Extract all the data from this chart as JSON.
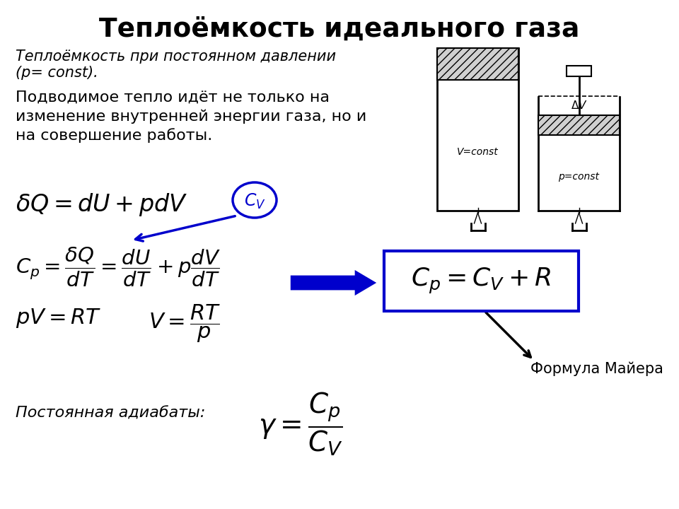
{
  "title": "Теплоёмкость идеального газа",
  "subtitle_italic": "Теплоёмкость при постоянном давлении",
  "subtitle_italic2": "(р= const).",
  "body_line1": "Подводимое тепло идёт не только на",
  "body_line2": "изменение внутренней энергии газа, но и",
  "body_line3": "на совершение работы.",
  "mayer_label": "Формула Майера",
  "adiabat_label": "Постоянная адиабаты:",
  "v_const_label": "V=const",
  "p_const_label": "p=const",
  "delta_v_label": "ΔV",
  "bg_color": "#ffffff",
  "title_color": "#000000",
  "text_color": "#000000",
  "formula_color": "#000000",
  "blue_color": "#0000cc",
  "box_color": "#0000cc"
}
